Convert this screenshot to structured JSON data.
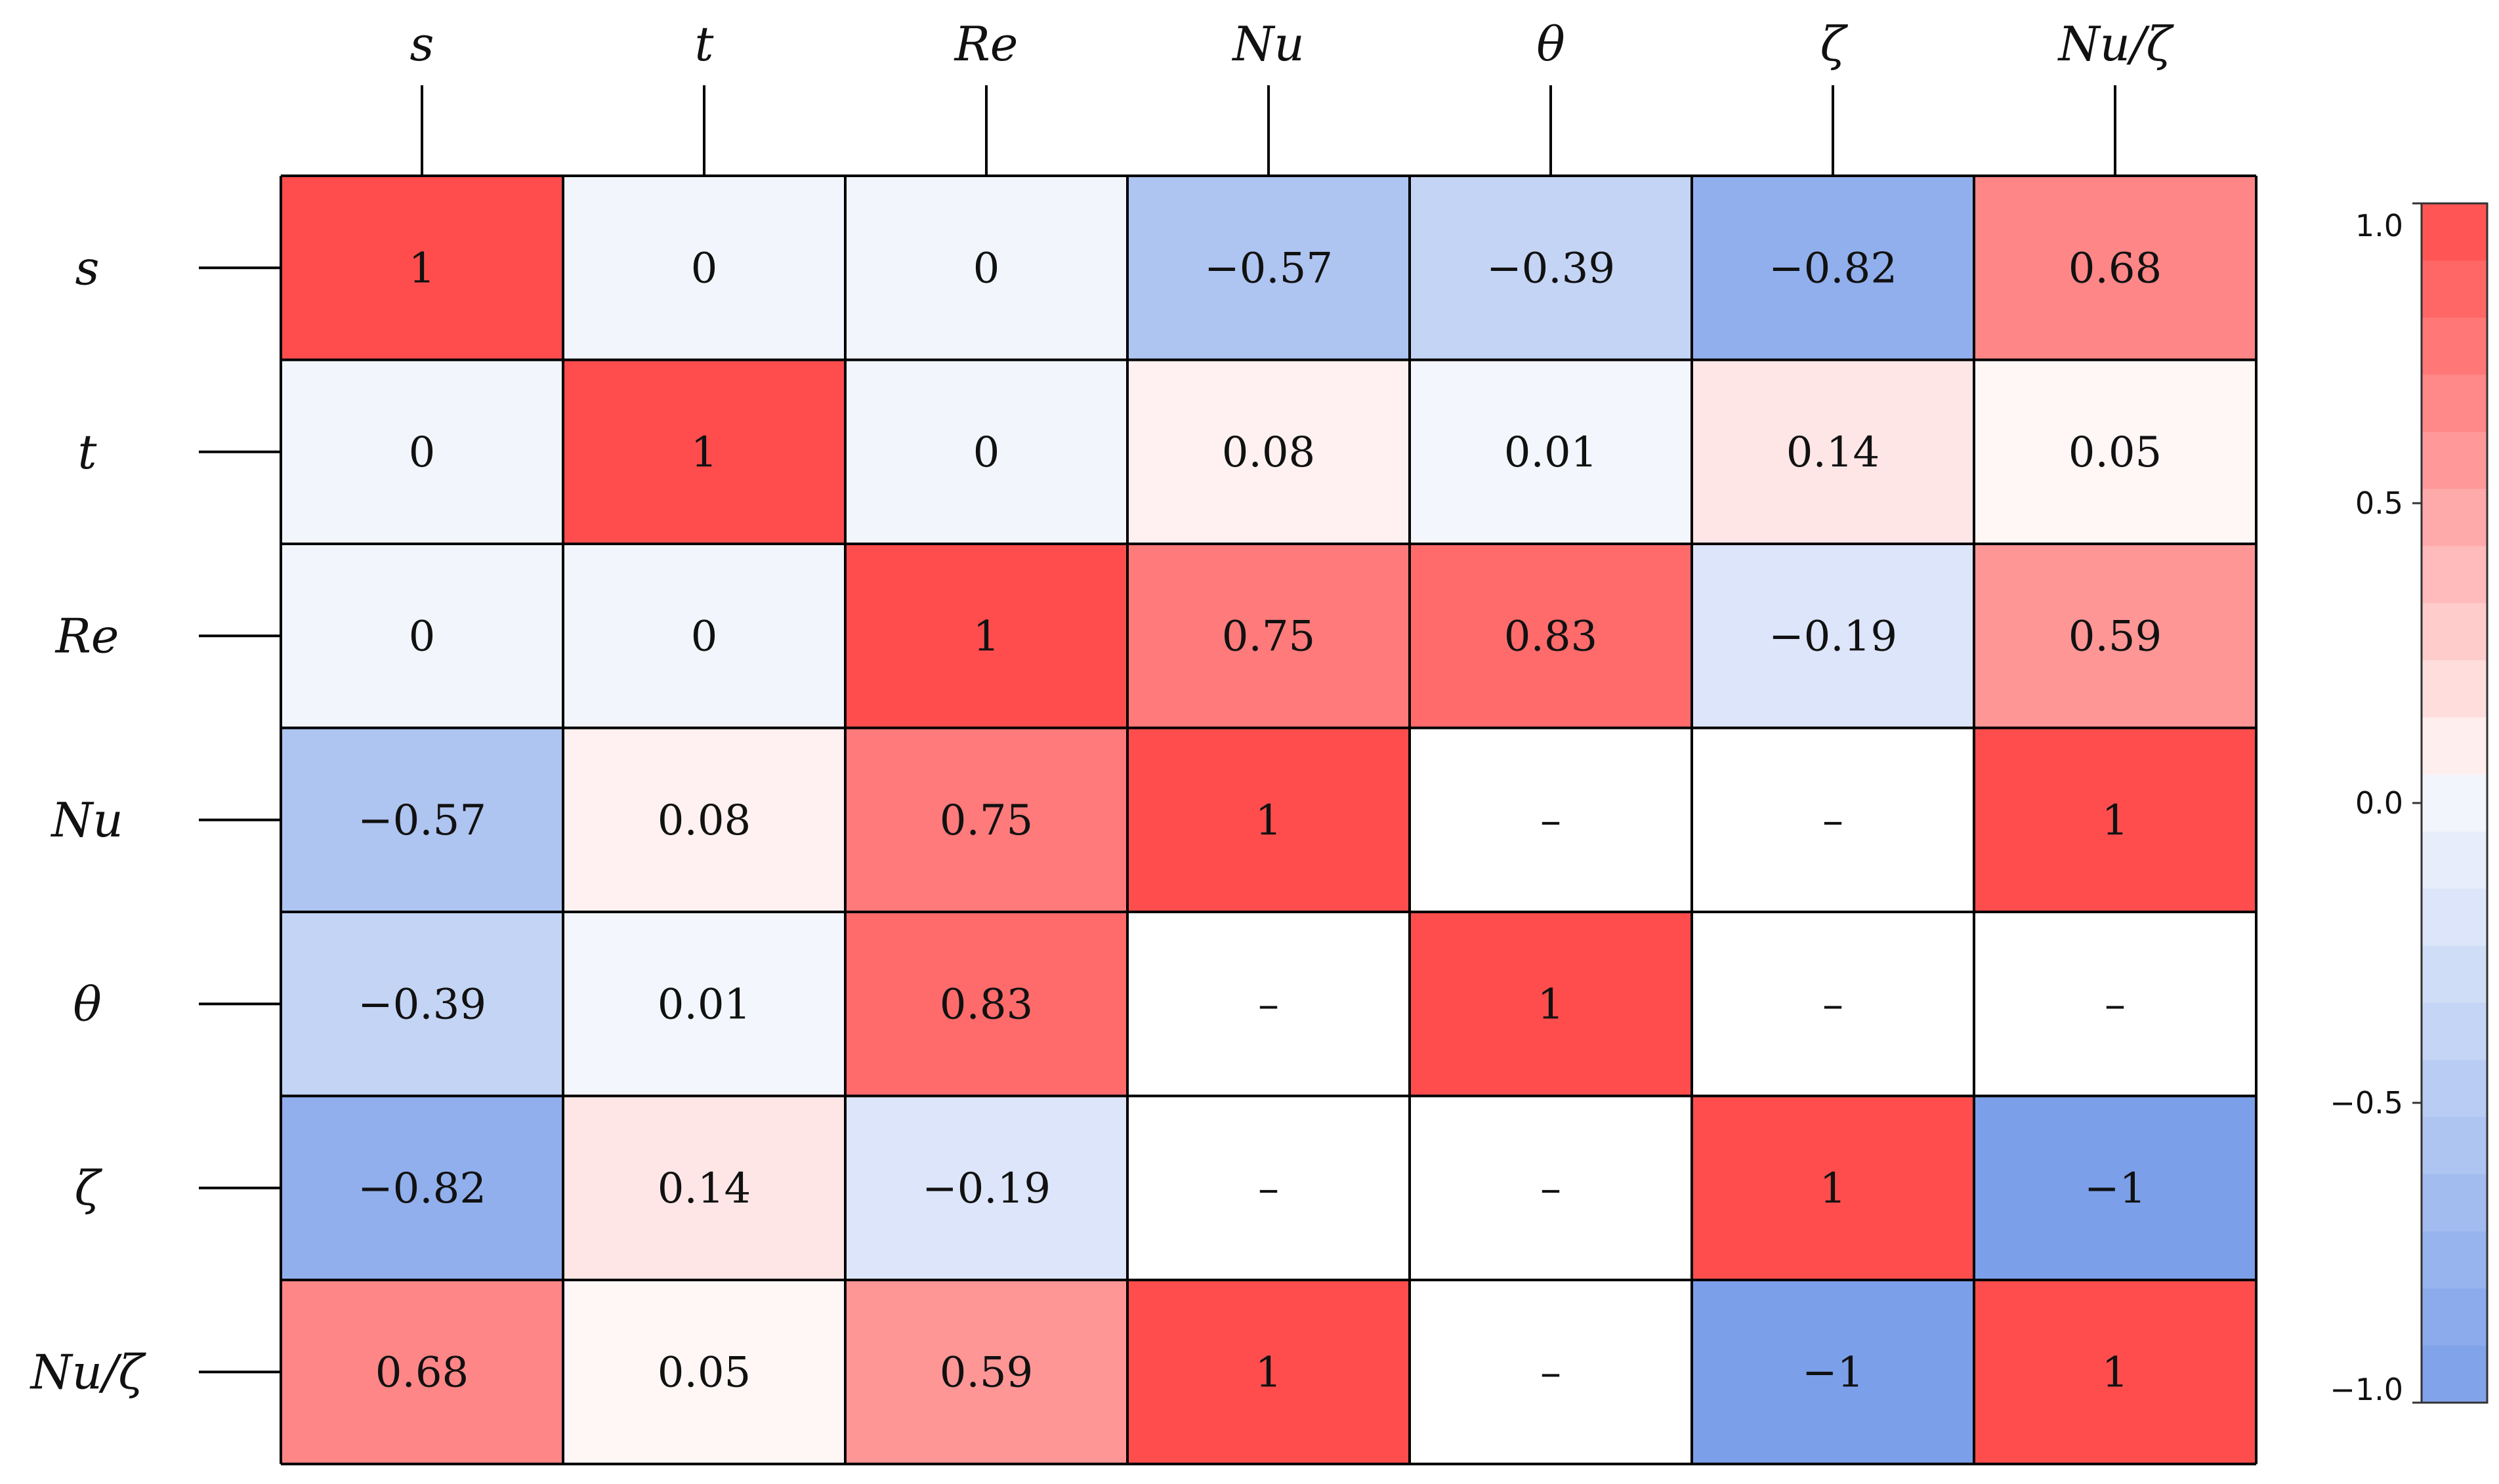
{
  "chart_data": {
    "type": "heatmap",
    "title": "",
    "row_labels": [
      "s",
      "t",
      "Re",
      "Nu",
      "θ",
      "ζ",
      "Nu/ζ"
    ],
    "col_labels": [
      "s",
      "t",
      "Re",
      "Nu",
      "θ",
      "ζ",
      "Nu/ζ"
    ],
    "values": [
      [
        1,
        0,
        0,
        -0.57,
        -0.39,
        -0.82,
        0.68
      ],
      [
        0,
        1,
        0,
        0.08,
        0.01,
        0.14,
        0.05
      ],
      [
        0,
        0,
        1,
        0.75,
        0.83,
        -0.19,
        0.59
      ],
      [
        -0.57,
        0.08,
        0.75,
        1,
        null,
        null,
        1
      ],
      [
        -0.39,
        0.01,
        0.83,
        null,
        1,
        null,
        null
      ],
      [
        -0.82,
        0.14,
        -0.19,
        null,
        null,
        1,
        -1
      ],
      [
        0.68,
        0.05,
        0.59,
        1,
        null,
        -1,
        1
      ]
    ],
    "cell_text": [
      [
        "1",
        "0",
        "0",
        "−0.57",
        "−0.39",
        "−0.82",
        "0.68"
      ],
      [
        "0",
        "1",
        "0",
        "0.08",
        "0.01",
        "0.14",
        "0.05"
      ],
      [
        "0",
        "0",
        "1",
        "0.75",
        "0.83",
        "−0.19",
        "0.59"
      ],
      [
        "−0.57",
        "0.08",
        "0.75",
        "1",
        "–",
        "–",
        "1"
      ],
      [
        "−0.39",
        "0.01",
        "0.83",
        "–",
        "1",
        "–",
        "–"
      ],
      [
        "−0.82",
        "0.14",
        "−0.19",
        "–",
        "–",
        "1",
        "−1"
      ],
      [
        "0.68",
        "0.05",
        "0.59",
        "1",
        "–",
        "−1",
        "1"
      ]
    ],
    "missing_text": "–",
    "colorbar": {
      "range": [
        -1.0,
        1.0
      ],
      "ticks": [
        1.0,
        0.5,
        0.0,
        -0.5,
        -1.0
      ],
      "tick_labels": [
        "1.0",
        "0.5",
        "0.0",
        "−0.5",
        "−1.0"
      ],
      "colors": {
        "negative": "#7b9fe9",
        "neutral": "#ffffff",
        "positive": "#ff4d4d"
      },
      "levels": 21,
      "position": "right"
    }
  }
}
